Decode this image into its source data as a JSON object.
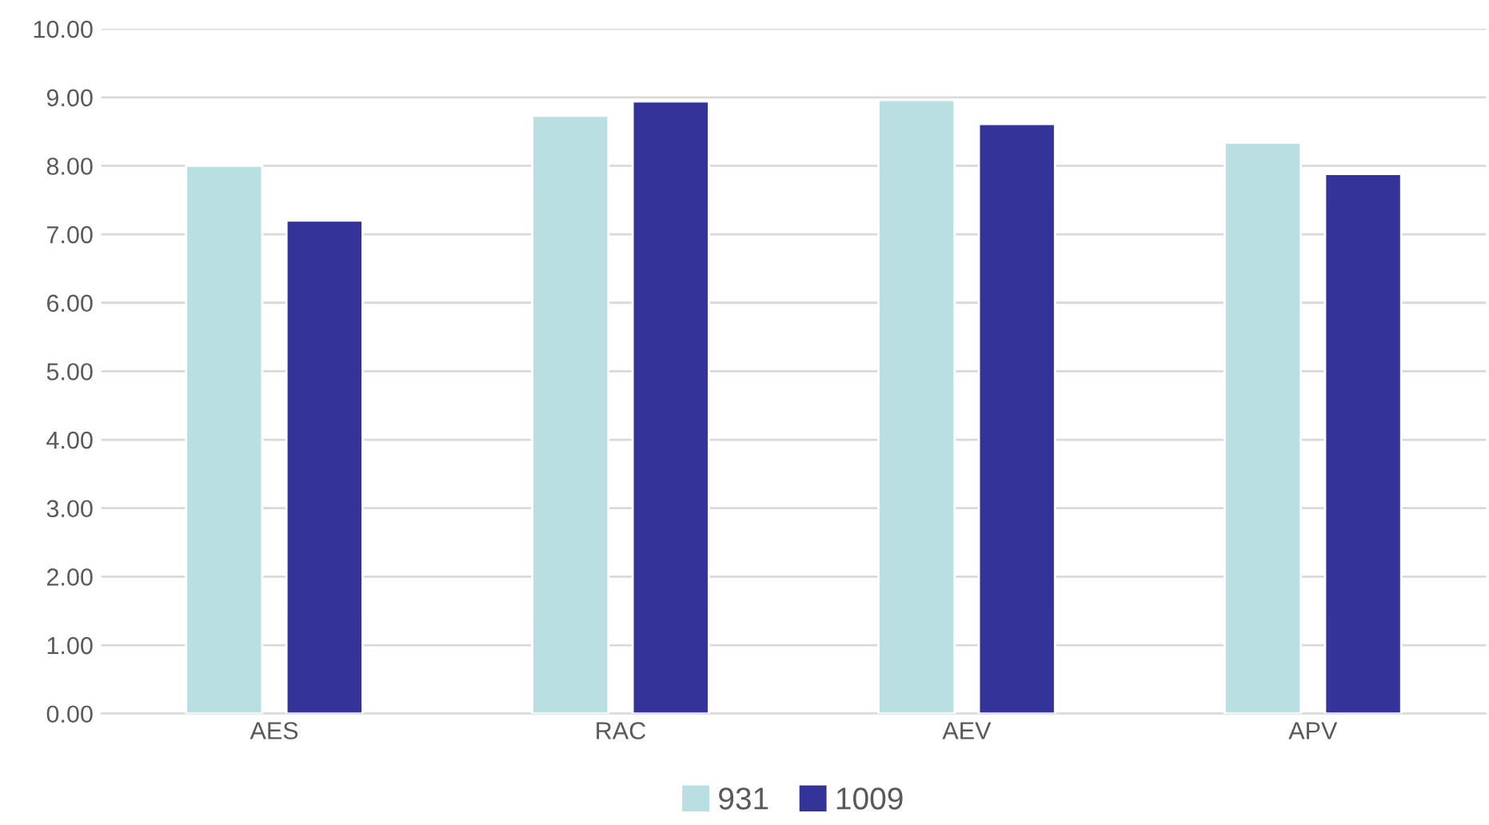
{
  "chart_data": {
    "type": "bar",
    "categories": [
      "AES",
      "RAC",
      "AEV",
      "APV"
    ],
    "series": [
      {
        "name": "931",
        "color": "#b9dfe3",
        "values": [
          8.0,
          8.73,
          8.96,
          8.34
        ]
      },
      {
        "name": "1009",
        "color": "#343399",
        "values": [
          7.2,
          8.94,
          8.61,
          7.88
        ]
      }
    ],
    "ylim": [
      0,
      10
    ],
    "yticks": [
      {
        "value": 0,
        "label": "0.00"
      },
      {
        "value": 1,
        "label": "1.00"
      },
      {
        "value": 2,
        "label": "2.00"
      },
      {
        "value": 3,
        "label": "3.00"
      },
      {
        "value": 4,
        "label": "4.00"
      },
      {
        "value": 5,
        "label": "5.00"
      },
      {
        "value": 6,
        "label": "6.00"
      },
      {
        "value": 7,
        "label": "7.00"
      },
      {
        "value": 8,
        "label": "8.00"
      },
      {
        "value": 9,
        "label": "9.00"
      },
      {
        "value": 10,
        "label": "10.00"
      }
    ],
    "grid": "y",
    "legend": "bottom"
  }
}
